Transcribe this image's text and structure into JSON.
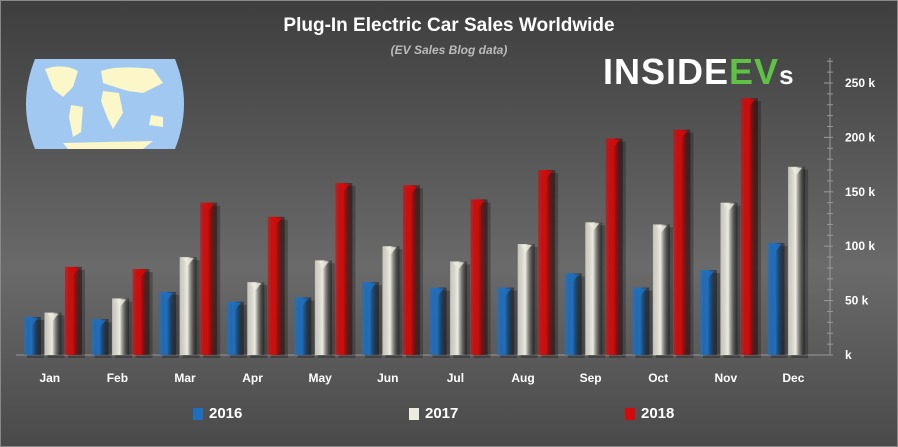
{
  "chart_data": {
    "type": "bar",
    "title": "Plug-In Electric Car Sales Worldwide",
    "subtitle": "(EV Sales Blog data)",
    "logo": "INSIDEEVs",
    "categories": [
      "Jan",
      "Feb",
      "Mar",
      "Apr",
      "May",
      "Jun",
      "Jul",
      "Aug",
      "Sep",
      "Oct",
      "Nov",
      "Dec"
    ],
    "series": [
      {
        "name": "2016",
        "color": "#1e6fc0",
        "values": [
          35,
          33,
          58,
          49,
          53,
          67,
          62,
          62,
          75,
          62,
          78,
          103
        ]
      },
      {
        "name": "2017",
        "color": "#ecebe0",
        "values": [
          39,
          52,
          90,
          67,
          87,
          100,
          86,
          102,
          122,
          120,
          140,
          173
        ]
      },
      {
        "name": "2018",
        "color": "#d40a0a",
        "values": [
          81,
          79,
          140,
          127,
          158,
          156,
          143,
          170,
          199,
          207,
          236,
          null
        ]
      }
    ],
    "ylim": [
      0,
      250
    ],
    "yticks": [
      {
        "v": 0,
        "label": "k"
      },
      {
        "v": 50,
        "label": "50 k"
      },
      {
        "v": 100,
        "label": "100 k"
      },
      {
        "v": 150,
        "label": "150 k"
      },
      {
        "v": 200,
        "label": "200 k"
      },
      {
        "v": 250,
        "label": "250 k"
      }
    ],
    "ylabel": "",
    "xlabel": "",
    "grid": false,
    "legend_position": "bottom"
  }
}
